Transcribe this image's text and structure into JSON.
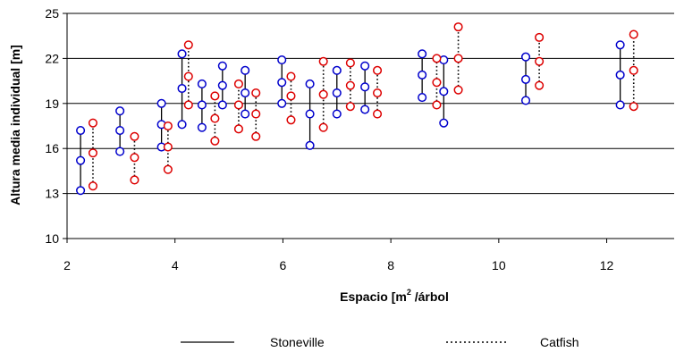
{
  "chart_data": {
    "type": "scatter",
    "xlabel_main": "Espacio [m",
    "xlabel_sup": "2",
    "xlabel_tail": " /árbol",
    "ylabel": "Altura media individual [m]",
    "xlim": [
      2,
      13.25
    ],
    "ylim": [
      10,
      25
    ],
    "xticks": [
      2,
      4,
      6,
      8,
      10,
      12
    ],
    "yticks": [
      10,
      13,
      16,
      19,
      22,
      25
    ],
    "xtick_labels": [
      "2",
      "4",
      "6",
      "8",
      "10",
      "12"
    ],
    "ytick_labels": [
      "10",
      "13",
      "16",
      "19",
      "22",
      "25"
    ],
    "grid": "horizontal",
    "legend_position": "bottom",
    "series": [
      {
        "name": "Stoneville",
        "marker_color": "#0000cc",
        "line_style": "solid",
        "groups": [
          {
            "x": 2.25,
            "y": [
              13.2,
              15.2,
              17.2
            ]
          },
          {
            "x": 2.98,
            "y": [
              15.8,
              17.2,
              18.5
            ]
          },
          {
            "x": 3.75,
            "y": [
              16.1,
              17.6,
              19.0
            ]
          },
          {
            "x": 4.13,
            "y": [
              17.6,
              20.0,
              22.3
            ]
          },
          {
            "x": 4.5,
            "y": [
              17.4,
              18.9,
              20.3
            ]
          },
          {
            "x": 4.88,
            "y": [
              18.9,
              20.2,
              21.5
            ]
          },
          {
            "x": 5.3,
            "y": [
              18.3,
              19.7,
              21.2
            ]
          },
          {
            "x": 5.98,
            "y": [
              19.0,
              20.4,
              21.9
            ]
          },
          {
            "x": 6.5,
            "y": [
              16.2,
              18.3,
              20.3
            ]
          },
          {
            "x": 7.0,
            "y": [
              18.3,
              19.7,
              21.2
            ]
          },
          {
            "x": 7.52,
            "y": [
              18.6,
              20.1,
              21.5
            ]
          },
          {
            "x": 8.58,
            "y": [
              19.4,
              20.9,
              22.3
            ]
          },
          {
            "x": 8.98,
            "y": [
              17.7,
              19.8,
              21.9
            ]
          },
          {
            "x": 10.5,
            "y": [
              19.2,
              20.6,
              22.1
            ]
          },
          {
            "x": 12.25,
            "y": [
              18.9,
              20.9,
              22.9
            ]
          }
        ]
      },
      {
        "name": "Catfish",
        "marker_color": "#dd0000",
        "line_style": "dotted",
        "groups": [
          {
            "x": 2.48,
            "y": [
              13.5,
              15.7,
              17.7
            ]
          },
          {
            "x": 3.25,
            "y": [
              13.9,
              15.4,
              16.8
            ]
          },
          {
            "x": 3.87,
            "y": [
              14.6,
              16.1,
              17.5
            ]
          },
          {
            "x": 4.25,
            "y": [
              18.9,
              20.8,
              22.9
            ]
          },
          {
            "x": 4.74,
            "y": [
              16.5,
              18.0,
              19.5
            ]
          },
          {
            "x": 5.18,
            "y": [
              17.3,
              18.9,
              20.3
            ]
          },
          {
            "x": 5.5,
            "y": [
              16.8,
              18.3,
              19.7
            ]
          },
          {
            "x": 6.15,
            "y": [
              17.9,
              19.5,
              20.8
            ]
          },
          {
            "x": 6.75,
            "y": [
              17.4,
              19.6,
              21.8
            ]
          },
          {
            "x": 7.25,
            "y": [
              18.8,
              20.2,
              21.7
            ]
          },
          {
            "x": 7.75,
            "y": [
              18.3,
              19.7,
              21.2
            ]
          },
          {
            "x": 8.85,
            "y": [
              18.9,
              20.4,
              22.0
            ]
          },
          {
            "x": 9.25,
            "y": [
              19.9,
              22.0,
              24.1
            ]
          },
          {
            "x": 10.75,
            "y": [
              20.2,
              21.8,
              23.4
            ]
          },
          {
            "x": 12.5,
            "y": [
              18.8,
              21.2,
              23.6
            ]
          }
        ]
      }
    ]
  }
}
